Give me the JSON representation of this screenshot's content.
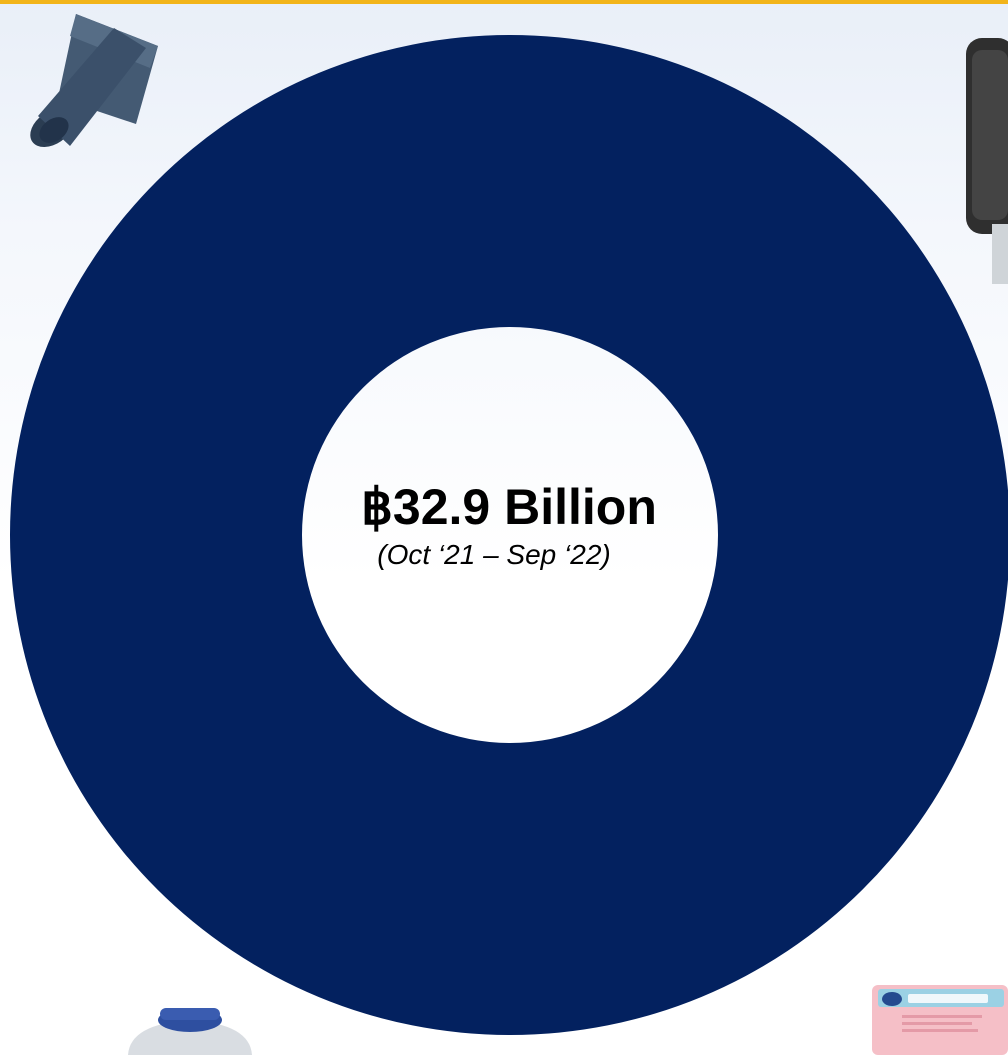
{
  "colors": {
    "accent_rule": "#f2b41a",
    "ring": "#03215f"
  },
  "chart_data": {
    "type": "pie",
    "style": "donut",
    "categories": [
      ""
    ],
    "values": [
      32.9
    ],
    "center_label": {
      "value": "฿32.9 Billion",
      "period": "(Oct ‘21 – Sep ‘22)"
    }
  },
  "decorations": {
    "icons": [
      "trash-bag-roll-icon",
      "paper-towel-dispenser-icon",
      "dispenser-bottle-icon",
      "all-purpose-wipes-pack-icon"
    ]
  }
}
